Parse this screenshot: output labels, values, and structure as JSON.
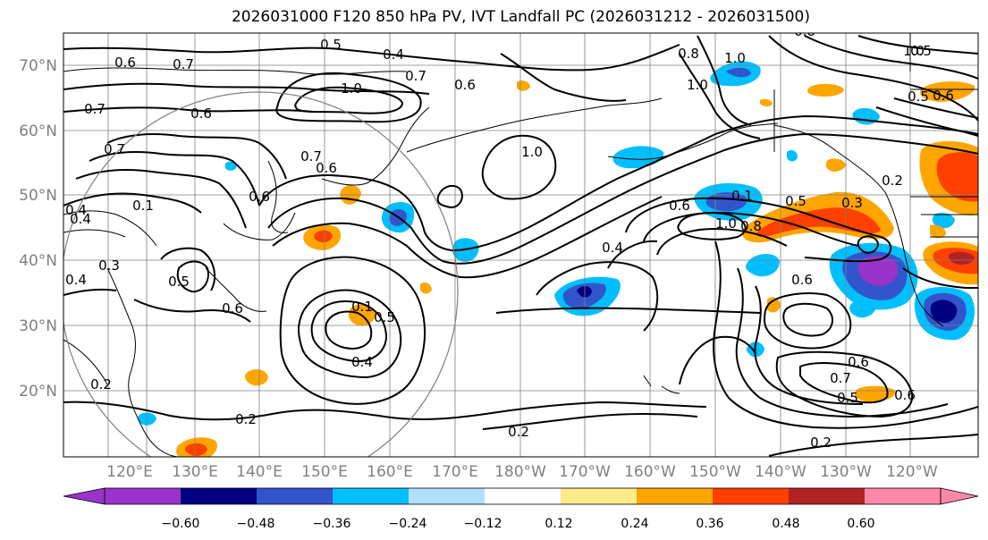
{
  "title": "2026031000 F120 850 hPa PV, IVT Landfall PC (2026031212 - 2026031500)",
  "lat_labels": [
    "70°N",
    "60°N",
    "50°N",
    "40°N",
    "30°N",
    "20°N"
  ],
  "lon_labels": [
    "120°E",
    "130°E",
    "140°E",
    "150°E",
    "160°E",
    "170°E",
    "180°W",
    "170°W",
    "160°W",
    "150°W",
    "140°W",
    "130°W",
    "120°W"
  ],
  "colorbar": {
    "ticks": [
      "−0.60",
      "−0.48",
      "−0.36",
      "−0.24",
      "−0.12",
      "0.12",
      "0.24",
      "0.36",
      "0.48",
      "0.60"
    ],
    "colors": [
      "#9933cc",
      "#000080",
      "#3355cc",
      "#00bfff",
      "#b0e0ff",
      "#ffffff",
      "#ffeb8a",
      "#ffa500",
      "#ff4000",
      "#b22222",
      "#ff88aa"
    ]
  },
  "contour_labels": [
    "0.6",
    "0.7",
    "0.5",
    "0.4",
    "0.7",
    "0.6",
    "1.0",
    "0.7",
    "0.6",
    "0.7",
    "0.4",
    "0.1",
    "0.4",
    "0.6",
    "0.7",
    "0.6",
    "0.3",
    "0.5",
    "0.4",
    "0.2",
    "0.6",
    "0.1",
    "0.5",
    "0.4",
    "0.2",
    "0.2",
    "0.4",
    "1.0",
    "0.8",
    "1.0",
    "1.0",
    "0.6",
    "0.1",
    "1.0",
    "0.8",
    "0.5",
    "0.3",
    "0.2",
    "0.6",
    "0.6",
    "0.6",
    "0.7",
    "0.5",
    "0.6",
    "0.2",
    "0.5",
    "1.0",
    "0.5",
    "0.8"
  ],
  "colors": {
    "grid": "#808080",
    "contour": "#000000",
    "circle": "#808080"
  }
}
